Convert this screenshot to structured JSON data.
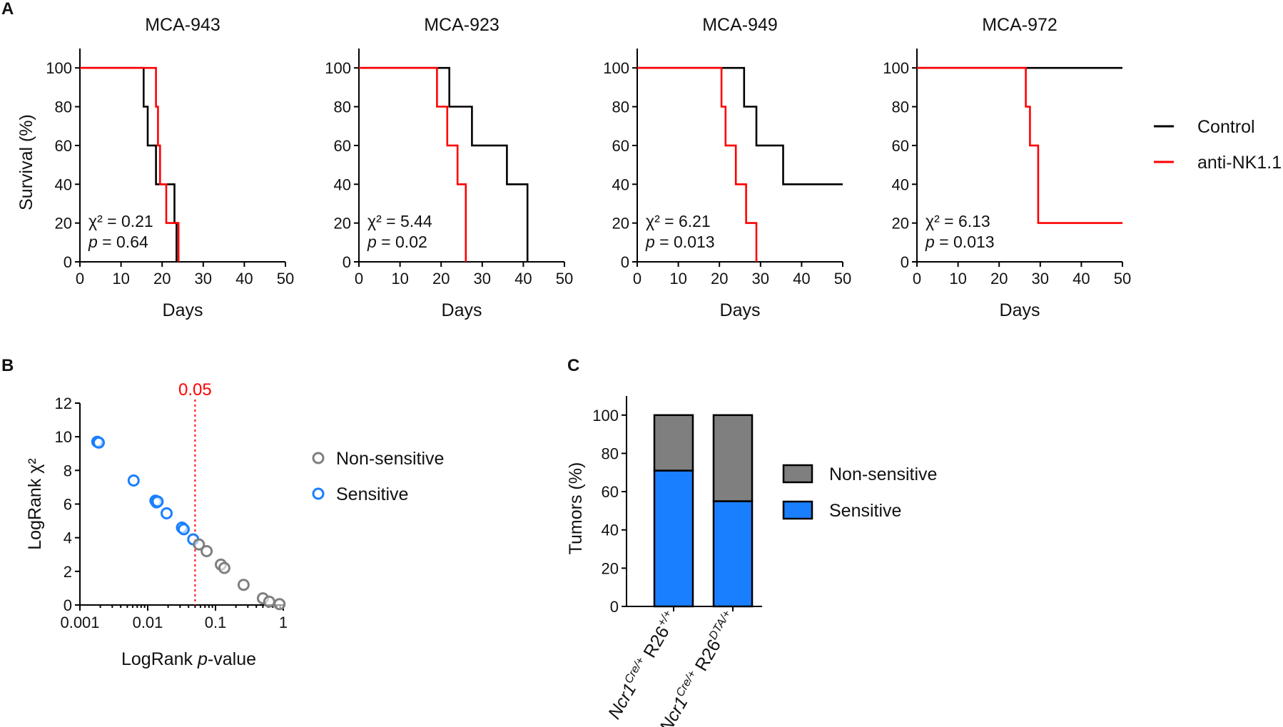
{
  "colors": {
    "control": "#000000",
    "anti_nk": "#ff0000",
    "sensitive": "#1a7fff",
    "non_sensitive": "#7f7f7f",
    "threshold": "#ff0000"
  },
  "panel_labels": {
    "a": "A",
    "b": "B",
    "c": "C"
  },
  "chart_data": [
    {
      "type": "line",
      "subtype": "kaplan-meier",
      "title": "MCA-943",
      "xlabel": "Days",
      "ylabel": "Survival (%)",
      "xlim": [
        0,
        50
      ],
      "ylim": [
        0,
        110
      ],
      "xticks": [
        "0",
        "10",
        "20",
        "30",
        "40",
        "50"
      ],
      "yticks": [
        "0",
        "20",
        "40",
        "60",
        "80",
        "100"
      ],
      "stats": {
        "chi2": "χ² = 0.21",
        "p_label": "p",
        "p_value": " = 0.64"
      },
      "series": [
        {
          "name": "Control",
          "steps": [
            [
              0,
              100
            ],
            [
              15.5,
              100
            ],
            [
              15.5,
              80
            ],
            [
              16.5,
              80
            ],
            [
              16.5,
              60
            ],
            [
              18.5,
              60
            ],
            [
              18.5,
              40
            ],
            [
              23,
              40
            ],
            [
              23,
              20
            ],
            [
              23.5,
              20
            ],
            [
              23.5,
              0
            ]
          ]
        },
        {
          "name": "anti-NK1.1",
          "steps": [
            [
              0,
              100
            ],
            [
              18.5,
              100
            ],
            [
              18.5,
              80
            ],
            [
              19,
              80
            ],
            [
              19,
              60
            ],
            [
              19.5,
              60
            ],
            [
              19.5,
              40
            ],
            [
              21,
              40
            ],
            [
              21,
              20
            ],
            [
              24,
              20
            ],
            [
              24,
              0
            ]
          ]
        }
      ]
    },
    {
      "type": "line",
      "subtype": "kaplan-meier",
      "title": "MCA-923",
      "xlabel": "Days",
      "ylabel": "",
      "xlim": [
        0,
        50
      ],
      "ylim": [
        0,
        110
      ],
      "xticks": [
        "0",
        "10",
        "20",
        "30",
        "40",
        "50"
      ],
      "yticks": [
        "0",
        "20",
        "40",
        "60",
        "80",
        "100"
      ],
      "stats": {
        "chi2": "χ² = 5.44",
        "p_label": "p",
        "p_value": " = 0.02"
      },
      "series": [
        {
          "name": "Control",
          "steps": [
            [
              0,
              100
            ],
            [
              22,
              100
            ],
            [
              22,
              80
            ],
            [
              27.5,
              80
            ],
            [
              27.5,
              60
            ],
            [
              36,
              60
            ],
            [
              36,
              40
            ],
            [
              41,
              40
            ],
            [
              41,
              0
            ]
          ]
        },
        {
          "name": "anti-NK1.1",
          "steps": [
            [
              0,
              100
            ],
            [
              19,
              100
            ],
            [
              19,
              80
            ],
            [
              21.5,
              80
            ],
            [
              21.5,
              60
            ],
            [
              24,
              60
            ],
            [
              24,
              40
            ],
            [
              26,
              40
            ],
            [
              26,
              0
            ]
          ]
        }
      ]
    },
    {
      "type": "line",
      "subtype": "kaplan-meier",
      "title": "MCA-949",
      "xlabel": "Days",
      "ylabel": "",
      "xlim": [
        0,
        50
      ],
      "ylim": [
        0,
        110
      ],
      "xticks": [
        "0",
        "10",
        "20",
        "30",
        "40",
        "50"
      ],
      "yticks": [
        "0",
        "20",
        "40",
        "60",
        "80",
        "100"
      ],
      "stats": {
        "chi2": "χ² = 6.21",
        "p_label": "p",
        "p_value": " = 0.013"
      },
      "series": [
        {
          "name": "Control",
          "steps": [
            [
              0,
              100
            ],
            [
              26,
              100
            ],
            [
              26,
              80
            ],
            [
              29,
              80
            ],
            [
              29,
              60
            ],
            [
              35.5,
              60
            ],
            [
              35.5,
              40
            ],
            [
              50,
              40
            ]
          ]
        },
        {
          "name": "anti-NK1.1",
          "steps": [
            [
              0,
              100
            ],
            [
              20.5,
              100
            ],
            [
              20.5,
              80
            ],
            [
              21.5,
              80
            ],
            [
              21.5,
              60
            ],
            [
              24,
              60
            ],
            [
              24,
              40
            ],
            [
              26.5,
              40
            ],
            [
              26.5,
              20
            ],
            [
              29,
              20
            ],
            [
              29,
              0
            ]
          ]
        }
      ]
    },
    {
      "type": "line",
      "subtype": "kaplan-meier",
      "title": "MCA-972",
      "xlabel": "Days",
      "ylabel": "",
      "xlim": [
        0,
        50
      ],
      "ylim": [
        0,
        110
      ],
      "xticks": [
        "0",
        "10",
        "20",
        "30",
        "40",
        "50"
      ],
      "yticks": [
        "0",
        "20",
        "40",
        "60",
        "80",
        "100"
      ],
      "stats": {
        "chi2": "χ² = 6.13",
        "p_label": "p",
        "p_value": " = 0.013"
      },
      "series": [
        {
          "name": "Control",
          "steps": [
            [
              0,
              100
            ],
            [
              50,
              100
            ]
          ]
        },
        {
          "name": "anti-NK1.1",
          "steps": [
            [
              0,
              100
            ],
            [
              26.5,
              100
            ],
            [
              26.5,
              80
            ],
            [
              27.5,
              80
            ],
            [
              27.5,
              60
            ],
            [
              29.5,
              60
            ],
            [
              29.5,
              20
            ],
            [
              50,
              20
            ]
          ]
        }
      ]
    },
    {
      "type": "scatter",
      "xscale": "log",
      "xlabel_pre": "LogRank ",
      "xlabel_italic": "p",
      "xlabel_post": "-value",
      "ylabel": "LogRank χ²",
      "xlim": [
        0.001,
        1
      ],
      "ylim": [
        0,
        12
      ],
      "xticks": [
        "0.001",
        "0.01",
        "0.1",
        "1"
      ],
      "yticks": [
        "0",
        "2",
        "4",
        "6",
        "8",
        "10",
        "12"
      ],
      "threshold": {
        "x": 0.05,
        "label": "0.05"
      },
      "series": [
        {
          "name": "Sensitive",
          "points": [
            [
              0.0018,
              9.7
            ],
            [
              0.0019,
              9.65
            ],
            [
              0.0062,
              7.4
            ],
            [
              0.013,
              6.2
            ],
            [
              0.0135,
              6.1
            ],
            [
              0.014,
              6.15
            ],
            [
              0.019,
              5.45
            ],
            [
              0.032,
              4.6
            ],
            [
              0.034,
              4.5
            ],
            [
              0.047,
              3.9
            ]
          ]
        },
        {
          "name": "Non-sensitive",
          "points": [
            [
              0.057,
              3.6
            ],
            [
              0.074,
              3.2
            ],
            [
              0.12,
              2.4
            ],
            [
              0.135,
              2.2
            ],
            [
              0.26,
              1.2
            ],
            [
              0.5,
              0.4
            ],
            [
              0.62,
              0.2
            ],
            [
              0.88,
              0.05
            ]
          ]
        }
      ],
      "legend": [
        "Non-sensitive",
        "Sensitive"
      ]
    },
    {
      "type": "bar",
      "stacked": true,
      "ylabel": "Tumors (%)",
      "ylim": [
        0,
        110
      ],
      "yticks": [
        "0",
        "20",
        "40",
        "60",
        "80",
        "100"
      ],
      "categories": [
        {
          "gene": "Ncr1",
          "sup1": "Cre/+",
          "mid": " R26",
          "sup2": "+/+"
        },
        {
          "gene": "Ncr1",
          "sup1": "Cre/+",
          "mid": " R26",
          "sup2": "DTA/+"
        }
      ],
      "series": [
        {
          "name": "Sensitive",
          "values": [
            71,
            55
          ]
        },
        {
          "name": "Non-sensitive",
          "values": [
            29,
            45
          ]
        }
      ],
      "legend": [
        "Non-sensitive",
        "Sensitive"
      ]
    }
  ],
  "legend_a": [
    "Control",
    "anti-NK1.1"
  ]
}
